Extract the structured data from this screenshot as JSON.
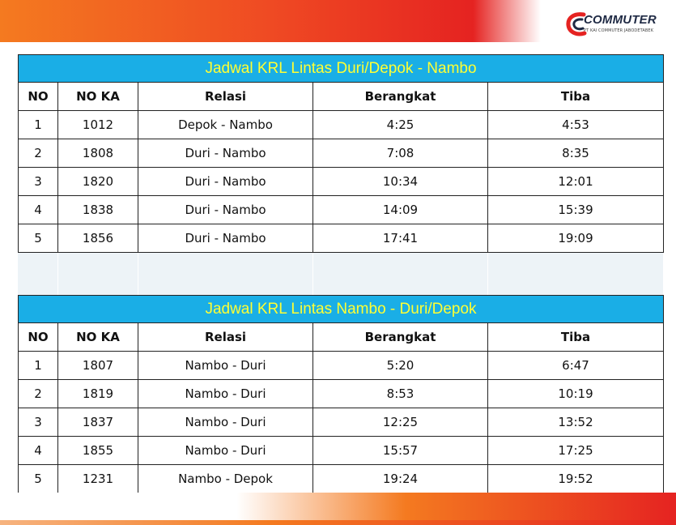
{
  "logo": {
    "brand": "COMMUTER",
    "subtitle": "PT KAI COMMUTER JABODETABEK"
  },
  "columns": [
    "NO",
    "NO KA",
    "Relasi",
    "Berangkat",
    "Tiba"
  ],
  "tables": [
    {
      "title": "Jadwal  KRL Lintas  Duri/Depok - Nambo",
      "rows": [
        [
          "1",
          "1012",
          "Depok - Nambo",
          "4:25",
          "4:53"
        ],
        [
          "2",
          "1808",
          "Duri - Nambo",
          "7:08",
          "8:35"
        ],
        [
          "3",
          "1820",
          "Duri - Nambo",
          "10:34",
          "12:01"
        ],
        [
          "4",
          "1838",
          "Duri - Nambo",
          "14:09",
          "15:39"
        ],
        [
          "5",
          "1856",
          "Duri - Nambo",
          "17:41",
          "19:09"
        ]
      ]
    },
    {
      "title": "Jadwal  KRL Lintas  Nambo - Duri/Depok",
      "rows": [
        [
          "1",
          "1807",
          "Nambo - Duri",
          "5:20",
          "6:47"
        ],
        [
          "2",
          "1819",
          "Nambo - Duri",
          "8:53",
          "10:19"
        ],
        [
          "3",
          "1837",
          "Nambo - Duri",
          "12:25",
          "13:52"
        ],
        [
          "4",
          "1855",
          "Nambo - Duri",
          "15:57",
          "17:25"
        ],
        [
          "5",
          "1231",
          "Nambo - Depok",
          "19:24",
          "19:52"
        ]
      ]
    }
  ]
}
